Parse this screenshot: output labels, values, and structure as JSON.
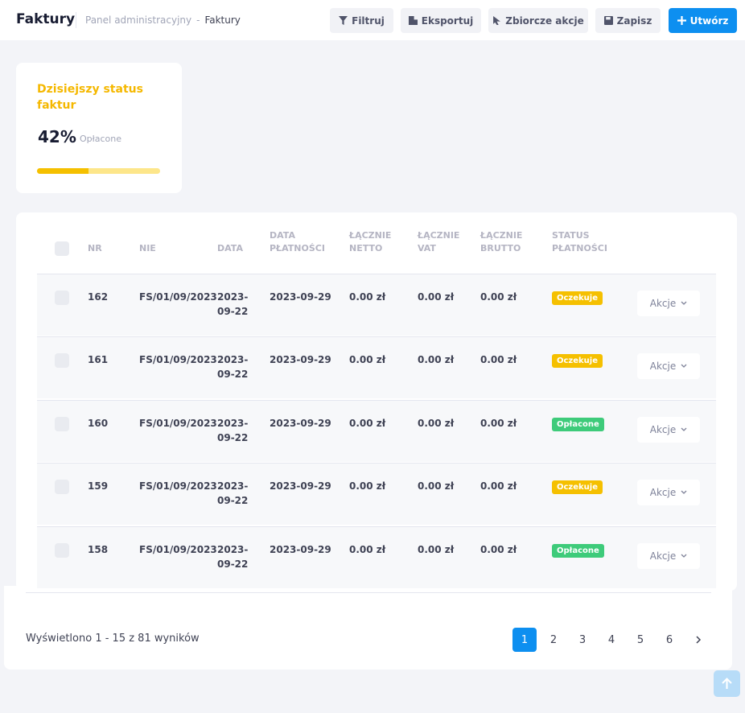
{
  "header": {
    "title": "Faktury",
    "breadcrumb": [
      "Panel administracyjny",
      "Faktury"
    ],
    "breadcrumb_separator": "-",
    "buttons": [
      "Filtruj",
      "Eksportuj",
      "Zbiorcze akcje",
      "Zapisz",
      "Utwórz"
    ]
  },
  "status_card": {
    "title": "Dzisiejszy status faktur",
    "percent": {
      "value": 42,
      "label": "42%"
    },
    "caption": "Opłacone"
  },
  "table": {
    "columns": [
      "NR",
      "NIE",
      "DATA",
      "DATA PŁATNOŚCI",
      "ŁĄCZNIE NETTO",
      "ŁĄCZNIE VAT",
      "ŁĄCZNIE BRUTTO",
      "STATUS PŁATNOŚCI"
    ],
    "rows": [
      [
        "162",
        "FS/01/09/2023",
        "2023-09-22",
        "2023-09-29",
        "0.00 zł",
        "0.00 zł",
        "0.00 zł",
        {
          "label": "Oczekuje",
          "color": "#f5c000"
        },
        "Akcje"
      ],
      [
        "161",
        "FS/01/09/2023",
        "2023-09-22",
        "2023-09-29",
        "0.00 zł",
        "0.00 zł",
        "0.00 zł",
        {
          "label": "Oczekuje",
          "color": "#f5c000"
        },
        "Akcje"
      ],
      [
        "160",
        "FS/01/09/2023",
        "2023-09-22",
        "2023-09-29",
        "0.00 zł",
        "0.00 zł",
        "0.00 zł",
        {
          "label": "Opłacone",
          "color": "#3ecb7a"
        },
        "Akcje"
      ],
      [
        "159",
        "FS/01/09/2023",
        "2023-09-22",
        "2023-09-29",
        "0.00 zł",
        "0.00 zł",
        "0.00 zł",
        {
          "label": "Oczekuje",
          "color": "#f5c000"
        },
        "Akcje"
      ],
      [
        "158",
        "FS/01/09/2023",
        "2023-09-22",
        "2023-09-29",
        "0.00 zł",
        "0.00 zł",
        "0.00 zł",
        {
          "label": "Opłacone",
          "color": "#3ecb7a"
        },
        "Akcje"
      ]
    ]
  },
  "footer": {
    "summary": "Wyświetlono 1 - 15 z 81 wyników",
    "pages": [
      1,
      2,
      3,
      4,
      5,
      6
    ],
    "current_page": 1
  }
}
